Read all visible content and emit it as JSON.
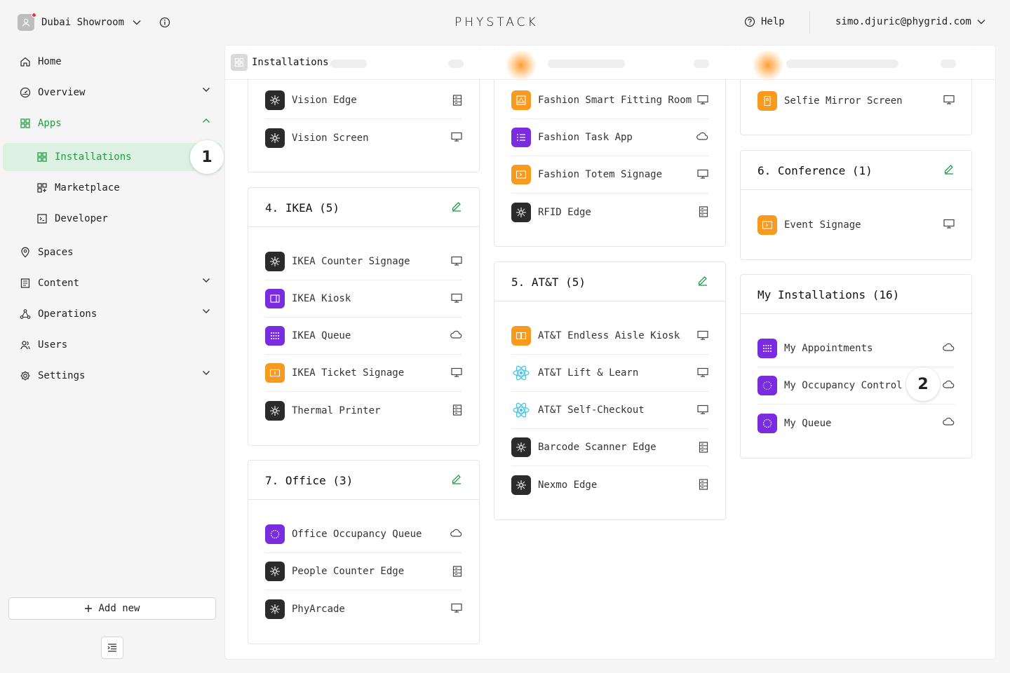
{
  "header": {
    "org_name": "Dubai Showroom",
    "logo_text": "PHYSTACK",
    "help_label": "Help",
    "account_email": "simo.djuric@phygrid.com"
  },
  "sidebar": {
    "items": [
      {
        "label": "Home",
        "icon": "home-icon"
      },
      {
        "label": "Overview",
        "icon": "gauge-icon"
      },
      {
        "label": "Apps",
        "icon": "grid-icon"
      },
      {
        "label": "Installations",
        "icon": "grid-icon"
      },
      {
        "label": "Marketplace",
        "icon": "apps-add-icon"
      },
      {
        "label": "Developer",
        "icon": "terminal-icon"
      },
      {
        "label": "Spaces",
        "icon": "location-pin-icon"
      },
      {
        "label": "Content",
        "icon": "document-icon"
      },
      {
        "label": "Operations",
        "icon": "nodes-icon"
      },
      {
        "label": "Users",
        "icon": "users-icon"
      },
      {
        "label": "Settings",
        "icon": "gear-icon"
      }
    ],
    "add_new_label": "Add new",
    "step_badge_1": "1"
  },
  "main": {
    "title": "Installations",
    "step_badge_2": "2",
    "cards": {
      "c1": {
        "apps": [
          {
            "name": "Vision Edge",
            "type": "edge"
          },
          {
            "name": "Vision Screen",
            "type": "screen"
          }
        ]
      },
      "c2": {
        "apps": [
          {
            "name": "Fashion Smart Fitting Room",
            "type": "screen"
          },
          {
            "name": "Fashion Task App",
            "type": "cloud"
          },
          {
            "name": "Fashion Totem Signage",
            "type": "screen"
          },
          {
            "name": "RFID Edge",
            "type": "edge"
          }
        ]
      },
      "c3": {
        "apps": [
          {
            "name": "Selfie Mirror Screen",
            "type": "screen"
          }
        ]
      },
      "ikea": {
        "title": "4. IKEA (5)",
        "apps": [
          {
            "name": "IKEA Counter Signage",
            "type": "screen"
          },
          {
            "name": "IKEA Kiosk",
            "type": "screen"
          },
          {
            "name": "IKEA Queue",
            "type": "cloud"
          },
          {
            "name": "IKEA Ticket Signage",
            "type": "screen"
          },
          {
            "name": "Thermal Printer",
            "type": "edge"
          }
        ]
      },
      "att": {
        "title": "5. AT&T (5)",
        "apps": [
          {
            "name": "AT&T Endless Aisle Kiosk",
            "type": "screen"
          },
          {
            "name": "AT&T Lift & Learn",
            "type": "screen"
          },
          {
            "name": "AT&T Self-Checkout",
            "type": "screen"
          },
          {
            "name": "Barcode Scanner Edge",
            "type": "edge"
          },
          {
            "name": "Nexmo Edge",
            "type": "edge"
          }
        ]
      },
      "conference": {
        "title": "6. Conference (1)",
        "apps": [
          {
            "name": "Event Signage",
            "type": "screen"
          }
        ]
      },
      "office": {
        "title": "7. Office (3)",
        "apps": [
          {
            "name": "Office Occupancy Queue",
            "type": "cloud"
          },
          {
            "name": "People Counter Edge",
            "type": "edge"
          },
          {
            "name": "PhyArcade",
            "type": "screen"
          }
        ]
      },
      "mine": {
        "title": "My Installations (16)",
        "apps": [
          {
            "name": "My Appointments",
            "type": "cloud"
          },
          {
            "name": "My Occupancy Control",
            "type": "cloud"
          },
          {
            "name": "My Queue",
            "type": "cloud"
          }
        ]
      }
    }
  },
  "colors": {
    "accent_green": "#1e9e45",
    "active_bg": "#dcf1e1",
    "orange": "#f79a1e",
    "purple": "#7a2de0",
    "dark": "#2b2b2b",
    "react_cyan": "#3bc4e6"
  }
}
